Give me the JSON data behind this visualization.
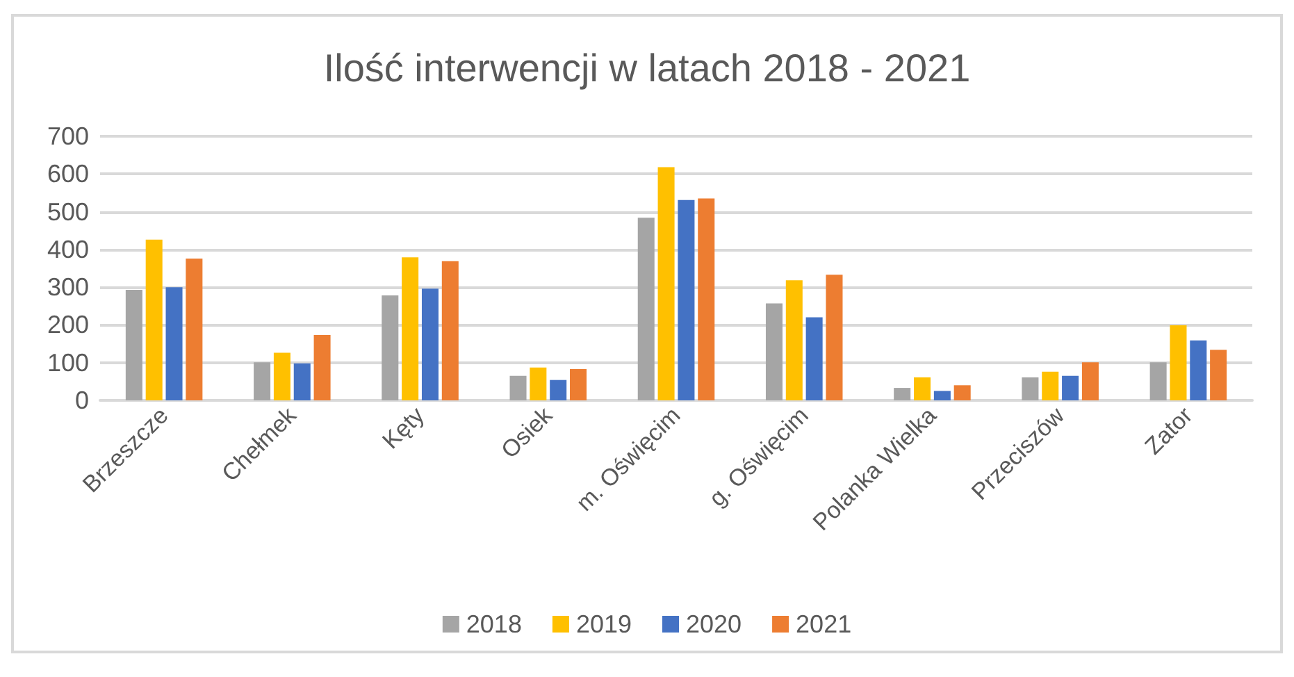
{
  "chart_data": {
    "type": "bar",
    "title": "Ilość interwencji w latach 2018 - 2021",
    "categories": [
      "Brzeszcze",
      "Chełmek",
      "Kęty",
      "Osiek",
      "m. Oświęcim",
      "g. Oświęcim",
      "Polanka Wielka",
      "Przeciszów",
      "Zator"
    ],
    "series": [
      {
        "name": "2018",
        "color": "#a5a5a5",
        "values": [
          293,
          101,
          278,
          65,
          484,
          257,
          33,
          61,
          101
        ]
      },
      {
        "name": "2019",
        "color": "#ffc000",
        "values": [
          426,
          126,
          379,
          87,
          618,
          318,
          61,
          76,
          199
        ]
      },
      {
        "name": "2020",
        "color": "#4472c4",
        "values": [
          300,
          98,
          296,
          54,
          531,
          220,
          25,
          65,
          159
        ]
      },
      {
        "name": "2021",
        "color": "#ed7d31",
        "values": [
          376,
          173,
          369,
          83,
          535,
          333,
          40,
          101,
          134
        ]
      }
    ],
    "ylim": [
      0,
      700
    ],
    "yticks": [
      0,
      100,
      200,
      300,
      400,
      500,
      600,
      700
    ],
    "grid": "y",
    "legend": "bottom"
  }
}
